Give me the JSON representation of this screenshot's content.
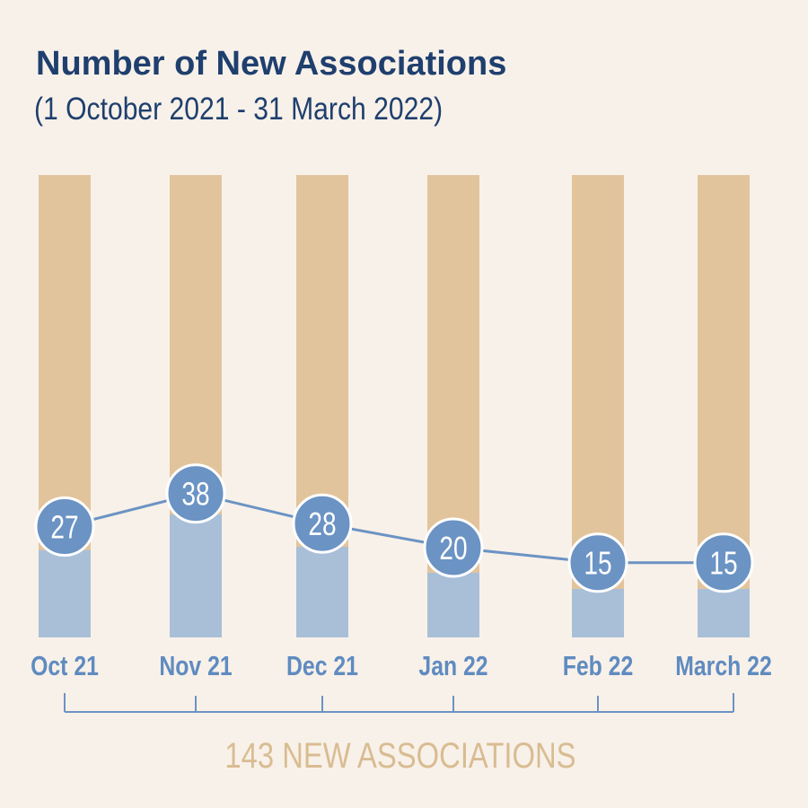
{
  "title": "Number of New Associations",
  "subtitle": "(1 October 2021 - 31 March 2022)",
  "colors": {
    "background": "#f8f1e9",
    "bar_track": "#e2c49c",
    "bar_fill": "#a9bfd8",
    "line": "#6b93c4",
    "marker": "#6b93c4",
    "marker_text": "#ffffff",
    "title": "#1f3f6e",
    "category_label": "#5f8bc0",
    "total_text": "#d9bc92"
  },
  "chart_data": {
    "type": "bar",
    "categories": [
      "Oct 21",
      "Nov 21",
      "Dec 21",
      "Jan 22",
      "Feb 22",
      "March 22"
    ],
    "values": [
      27,
      38,
      28,
      20,
      15,
      15
    ],
    "data_labels": [
      "27",
      "38",
      "28",
      "20",
      "15",
      "15"
    ],
    "overlay": "line",
    "grid": false,
    "total_label": "143 NEW ASSOCIATIONS"
  }
}
